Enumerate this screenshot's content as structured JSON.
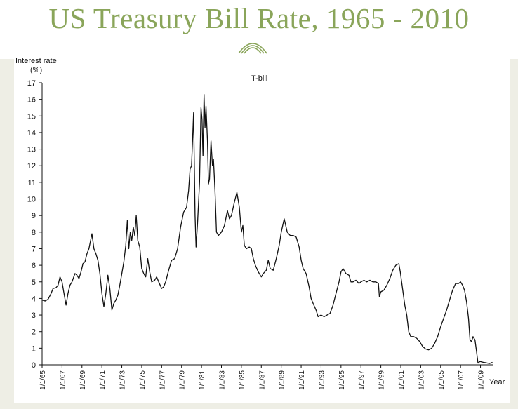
{
  "slide": {
    "title": "US Treasury Bill Rate, 1965 - 2010",
    "accent_color": "#8aa55a",
    "ornament_icon": "arch-icon"
  },
  "chart_data": {
    "type": "line",
    "title": "T-bill",
    "ylabel_line1": "Interest rate",
    "ylabel_line2": "(%)",
    "xlabel": "Year",
    "ylim": [
      0,
      17
    ],
    "xlim": [
      1965,
      2010.3
    ],
    "grid": false,
    "yticks": [
      0,
      1,
      2,
      3,
      4,
      5,
      6,
      7,
      8,
      9,
      10,
      11,
      12,
      13,
      14,
      15,
      16,
      17
    ],
    "xticks": [
      {
        "year": 1965,
        "label": "1/1/65"
      },
      {
        "year": 1967,
        "label": "1/1/67"
      },
      {
        "year": 1969,
        "label": "1/1/69"
      },
      {
        "year": 1971,
        "label": "1/1/71"
      },
      {
        "year": 1973,
        "label": "1/1/73"
      },
      {
        "year": 1975,
        "label": "1/1/75"
      },
      {
        "year": 1977,
        "label": "1/1/77"
      },
      {
        "year": 1979,
        "label": "1/1/79"
      },
      {
        "year": 1981,
        "label": "1/1/81"
      },
      {
        "year": 1983,
        "label": "1/1/83"
      },
      {
        "year": 1985,
        "label": "1/1/85"
      },
      {
        "year": 1987,
        "label": "1/1/87"
      },
      {
        "year": 1989,
        "label": "1/1/89"
      },
      {
        "year": 1991,
        "label": "1/1/91"
      },
      {
        "year": 1993,
        "label": "1/1/93"
      },
      {
        "year": 1995,
        "label": "1/1/95"
      },
      {
        "year": 1997,
        "label": "1/1/97"
      },
      {
        "year": 1999,
        "label": "1/1/99"
      },
      {
        "year": 2001,
        "label": "1/1/01"
      },
      {
        "year": 2003,
        "label": "1/1/03"
      },
      {
        "year": 2005,
        "label": "1/1/05"
      },
      {
        "year": 2007,
        "label": "1/1/07"
      },
      {
        "year": 2009,
        "label": "1/1/09"
      }
    ],
    "series": [
      {
        "line_color": "#111111",
        "points": [
          [
            1965.0,
            3.9
          ],
          [
            1965.3,
            3.85
          ],
          [
            1965.6,
            3.95
          ],
          [
            1965.9,
            4.3
          ],
          [
            1966.1,
            4.6
          ],
          [
            1966.4,
            4.65
          ],
          [
            1966.6,
            4.8
          ],
          [
            1966.8,
            5.3
          ],
          [
            1967.0,
            5.0
          ],
          [
            1967.2,
            4.3
          ],
          [
            1967.4,
            3.6
          ],
          [
            1967.6,
            4.3
          ],
          [
            1967.8,
            4.8
          ],
          [
            1968.0,
            5.0
          ],
          [
            1968.3,
            5.5
          ],
          [
            1968.5,
            5.4
          ],
          [
            1968.7,
            5.2
          ],
          [
            1968.9,
            5.6
          ],
          [
            1969.1,
            6.1
          ],
          [
            1969.3,
            6.2
          ],
          [
            1969.5,
            6.7
          ],
          [
            1969.7,
            7.0
          ],
          [
            1969.9,
            7.6
          ],
          [
            1970.0,
            7.9
          ],
          [
            1970.2,
            7.0
          ],
          [
            1970.4,
            6.7
          ],
          [
            1970.6,
            6.3
          ],
          [
            1970.8,
            5.5
          ],
          [
            1971.0,
            4.3
          ],
          [
            1971.2,
            3.5
          ],
          [
            1971.4,
            4.3
          ],
          [
            1971.6,
            5.4
          ],
          [
            1971.8,
            4.6
          ],
          [
            1972.0,
            3.3
          ],
          [
            1972.2,
            3.7
          ],
          [
            1972.4,
            3.9
          ],
          [
            1972.6,
            4.2
          ],
          [
            1972.8,
            4.8
          ],
          [
            1973.0,
            5.5
          ],
          [
            1973.2,
            6.2
          ],
          [
            1973.4,
            7.2
          ],
          [
            1973.55,
            8.7
          ],
          [
            1973.7,
            7.0
          ],
          [
            1973.85,
            8.0
          ],
          [
            1974.0,
            7.5
          ],
          [
            1974.15,
            8.3
          ],
          [
            1974.3,
            7.8
          ],
          [
            1974.45,
            9.0
          ],
          [
            1974.6,
            7.5
          ],
          [
            1974.8,
            7.1
          ],
          [
            1975.0,
            5.8
          ],
          [
            1975.2,
            5.5
          ],
          [
            1975.4,
            5.3
          ],
          [
            1975.6,
            6.4
          ],
          [
            1975.8,
            5.6
          ],
          [
            1976.0,
            5.0
          ],
          [
            1976.3,
            5.1
          ],
          [
            1976.5,
            5.3
          ],
          [
            1976.7,
            5.0
          ],
          [
            1977.0,
            4.6
          ],
          [
            1977.2,
            4.7
          ],
          [
            1977.4,
            5.0
          ],
          [
            1977.7,
            5.7
          ],
          [
            1978.0,
            6.3
          ],
          [
            1978.3,
            6.4
          ],
          [
            1978.6,
            7.0
          ],
          [
            1978.9,
            8.3
          ],
          [
            1979.2,
            9.2
          ],
          [
            1979.5,
            9.5
          ],
          [
            1979.7,
            10.5
          ],
          [
            1979.85,
            11.8
          ],
          [
            1980.0,
            12.0
          ],
          [
            1980.1,
            13.5
          ],
          [
            1980.2,
            15.2
          ],
          [
            1980.35,
            9.0
          ],
          [
            1980.45,
            7.1
          ],
          [
            1980.6,
            8.5
          ],
          [
            1980.8,
            11.0
          ],
          [
            1980.95,
            15.5
          ],
          [
            1981.05,
            14.8
          ],
          [
            1981.15,
            12.6
          ],
          [
            1981.25,
            16.3
          ],
          [
            1981.35,
            14.3
          ],
          [
            1981.45,
            15.6
          ],
          [
            1981.6,
            13.5
          ],
          [
            1981.7,
            10.9
          ],
          [
            1981.8,
            11.2
          ],
          [
            1981.95,
            13.5
          ],
          [
            1982.1,
            12.0
          ],
          [
            1982.2,
            12.4
          ],
          [
            1982.35,
            10.5
          ],
          [
            1982.5,
            8.0
          ],
          [
            1982.7,
            7.8
          ],
          [
            1983.0,
            8.0
          ],
          [
            1983.3,
            8.4
          ],
          [
            1983.6,
            9.3
          ],
          [
            1983.8,
            8.8
          ],
          [
            1984.0,
            9.0
          ],
          [
            1984.3,
            9.8
          ],
          [
            1984.55,
            10.4
          ],
          [
            1984.8,
            9.5
          ],
          [
            1985.0,
            8.0
          ],
          [
            1985.15,
            8.4
          ],
          [
            1985.3,
            7.2
          ],
          [
            1985.5,
            7.0
          ],
          [
            1985.8,
            7.1
          ],
          [
            1986.0,
            7.0
          ],
          [
            1986.2,
            6.4
          ],
          [
            1986.4,
            6.0
          ],
          [
            1986.7,
            5.6
          ],
          [
            1987.0,
            5.3
          ],
          [
            1987.2,
            5.5
          ],
          [
            1987.5,
            5.7
          ],
          [
            1987.7,
            6.3
          ],
          [
            1987.9,
            5.8
          ],
          [
            1988.2,
            5.7
          ],
          [
            1988.5,
            6.4
          ],
          [
            1988.8,
            7.2
          ],
          [
            1989.0,
            8.0
          ],
          [
            1989.3,
            8.8
          ],
          [
            1989.6,
            8.0
          ],
          [
            1989.9,
            7.8
          ],
          [
            1990.2,
            7.8
          ],
          [
            1990.5,
            7.7
          ],
          [
            1990.8,
            7.1
          ],
          [
            1991.0,
            6.3
          ],
          [
            1991.2,
            5.8
          ],
          [
            1991.5,
            5.5
          ],
          [
            1991.8,
            4.7
          ],
          [
            1992.0,
            4.0
          ],
          [
            1992.2,
            3.7
          ],
          [
            1992.5,
            3.3
          ],
          [
            1992.7,
            2.9
          ],
          [
            1993.0,
            3.0
          ],
          [
            1993.3,
            2.9
          ],
          [
            1993.6,
            3.0
          ],
          [
            1993.9,
            3.1
          ],
          [
            1994.2,
            3.6
          ],
          [
            1994.5,
            4.3
          ],
          [
            1994.8,
            5.0
          ],
          [
            1995.0,
            5.6
          ],
          [
            1995.2,
            5.8
          ],
          [
            1995.5,
            5.5
          ],
          [
            1995.8,
            5.4
          ],
          [
            1996.0,
            5.0
          ],
          [
            1996.2,
            5.0
          ],
          [
            1996.5,
            5.1
          ],
          [
            1996.8,
            4.9
          ],
          [
            1997.0,
            5.0
          ],
          [
            1997.3,
            5.1
          ],
          [
            1997.6,
            5.0
          ],
          [
            1997.9,
            5.1
          ],
          [
            1998.2,
            5.0
          ],
          [
            1998.5,
            5.0
          ],
          [
            1998.75,
            4.9
          ],
          [
            1998.85,
            4.1
          ],
          [
            1999.0,
            4.4
          ],
          [
            1999.3,
            4.5
          ],
          [
            1999.6,
            4.8
          ],
          [
            1999.9,
            5.2
          ],
          [
            2000.2,
            5.7
          ],
          [
            2000.5,
            6.0
          ],
          [
            2000.8,
            6.1
          ],
          [
            2000.95,
            5.6
          ],
          [
            2001.2,
            4.5
          ],
          [
            2001.4,
            3.6
          ],
          [
            2001.6,
            3.0
          ],
          [
            2001.8,
            2.0
          ],
          [
            2002.0,
            1.7
          ],
          [
            2002.3,
            1.7
          ],
          [
            2002.6,
            1.6
          ],
          [
            2002.9,
            1.4
          ],
          [
            2003.2,
            1.1
          ],
          [
            2003.5,
            0.95
          ],
          [
            2003.8,
            0.9
          ],
          [
            2004.1,
            1.0
          ],
          [
            2004.4,
            1.3
          ],
          [
            2004.7,
            1.7
          ],
          [
            2005.0,
            2.3
          ],
          [
            2005.3,
            2.8
          ],
          [
            2005.6,
            3.3
          ],
          [
            2005.9,
            3.9
          ],
          [
            2006.2,
            4.5
          ],
          [
            2006.5,
            4.9
          ],
          [
            2006.8,
            4.9
          ],
          [
            2007.0,
            5.0
          ],
          [
            2007.2,
            4.8
          ],
          [
            2007.4,
            4.5
          ],
          [
            2007.6,
            3.8
          ],
          [
            2007.8,
            2.8
          ],
          [
            2007.95,
            1.5
          ],
          [
            2008.1,
            1.4
          ],
          [
            2008.25,
            1.7
          ],
          [
            2008.45,
            1.5
          ],
          [
            2008.6,
            0.8
          ],
          [
            2008.75,
            0.1
          ],
          [
            2008.95,
            0.2
          ],
          [
            2009.3,
            0.15
          ],
          [
            2009.6,
            0.12
          ],
          [
            2009.9,
            0.08
          ],
          [
            2010.2,
            0.15
          ]
        ]
      }
    ]
  }
}
